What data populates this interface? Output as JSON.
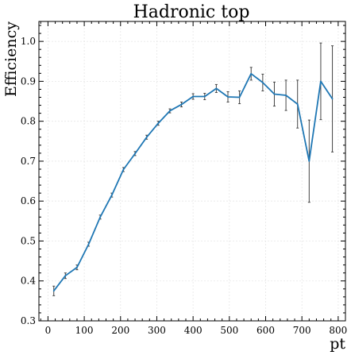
{
  "chart_data": {
    "type": "line",
    "title": "Hadronic top",
    "xlabel": "pt",
    "ylabel": "Efficiency",
    "xlim": [
      -25,
      820
    ],
    "ylim": [
      0.3,
      1.05
    ],
    "xticks": [
      0,
      100,
      200,
      300,
      400,
      500,
      600,
      700,
      800
    ],
    "yticks": [
      0.3,
      0.4,
      0.5,
      0.6,
      0.7,
      0.8,
      0.9,
      1.0
    ],
    "xtick_labels": [
      "0",
      "100",
      "200",
      "300",
      "400",
      "500",
      "600",
      "700",
      "800"
    ],
    "ytick_labels": [
      "0.3",
      "0.4",
      "0.5",
      "0.6",
      "0.7",
      "0.8",
      "0.9",
      "1.0"
    ],
    "grid": true,
    "series": [
      {
        "color": "#1f77b4",
        "x": [
          16,
          48,
          80,
          112,
          144,
          176,
          208,
          240,
          272,
          304,
          336,
          368,
          400,
          432,
          464,
          496,
          528,
          560,
          592,
          624,
          656,
          688,
          720,
          752,
          784
        ],
        "y": [
          0.375,
          0.413,
          0.434,
          0.492,
          0.56,
          0.615,
          0.679,
          0.719,
          0.76,
          0.795,
          0.826,
          0.842,
          0.862,
          0.862,
          0.882,
          0.861,
          0.86,
          0.919,
          0.897,
          0.868,
          0.865,
          0.843,
          0.7,
          0.9,
          0.856
        ],
        "yerr": [
          0.012,
          0.007,
          0.006,
          0.005,
          0.005,
          0.005,
          0.005,
          0.005,
          0.005,
          0.005,
          0.005,
          0.006,
          0.007,
          0.008,
          0.01,
          0.013,
          0.016,
          0.016,
          0.021,
          0.03,
          0.038,
          0.06,
          0.103,
          0.096,
          0.133
        ]
      }
    ]
  }
}
